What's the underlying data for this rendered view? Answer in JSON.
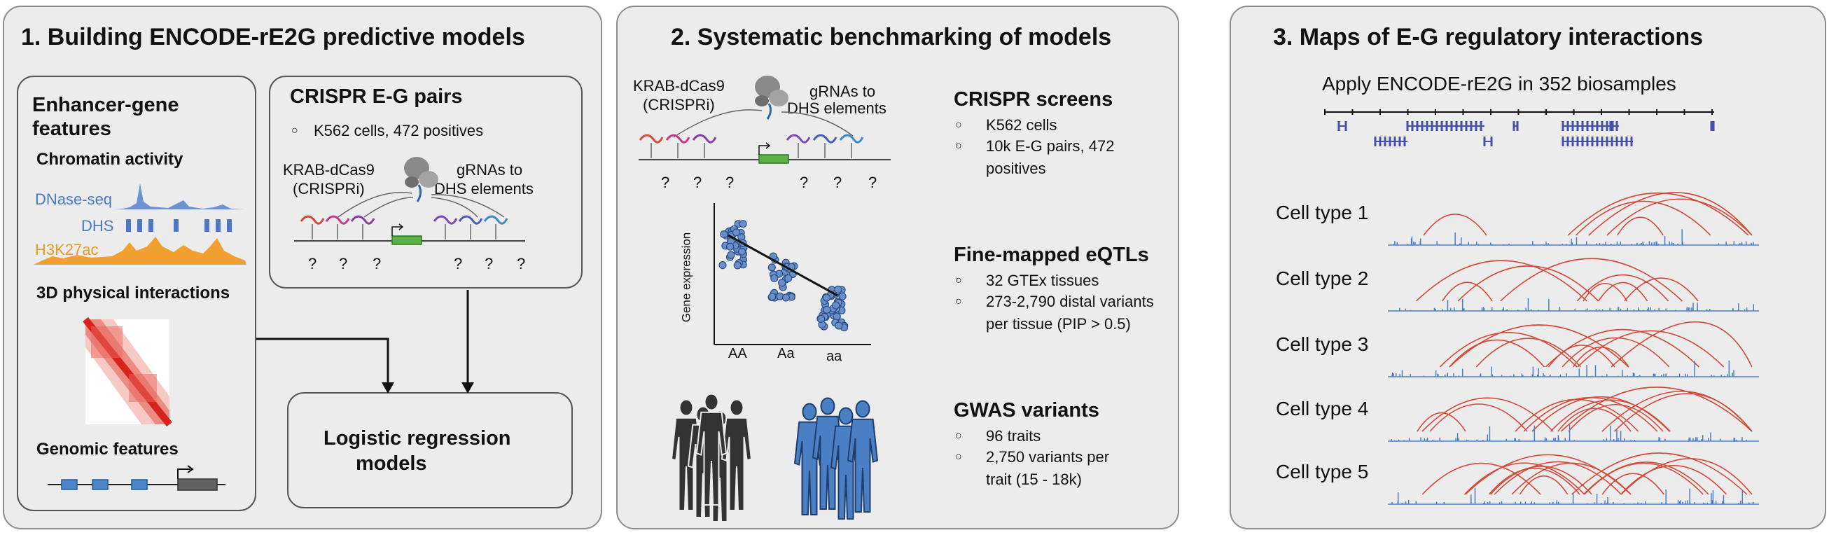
{
  "panel1": {
    "title": "1. Building ENCODE-rE2G predictive models",
    "features": {
      "title_line1": "Enhancer-gene",
      "title_line2": "features",
      "chromatin": "Chromatin activity",
      "dnase": "DNase-seq",
      "dhs": "DHS",
      "h3k27ac": "H3K27ac",
      "physical": "3D physical interactions",
      "genomic": "Genomic features"
    },
    "crispr": {
      "title": "CRISPR E-G pairs",
      "bullet": "K562 cells, 472 positives",
      "krab_line1": "KRAB-dCas9",
      "krab_line2": "(CRISPRi)",
      "grna_line1": "gRNAs to",
      "grna_line2": "DHS elements",
      "q": "?"
    },
    "logistic_line1": "Logistic regression",
    "logistic_line2": "models",
    "colors": {
      "dnase": "#4a78c2",
      "h3k27ac": "#f0a030",
      "hic": "#e0302a",
      "exon": "#4a86c8"
    }
  },
  "panel2": {
    "title": "2. Systematic benchmarking of models",
    "krab_line1": "KRAB-dCas9",
    "krab_line2": "(CRISPRi)",
    "grna_line1": "gRNAs to",
    "grna_line2": "DHS elements",
    "q": "?",
    "ylabel": "Gene expression",
    "genotypes": [
      "AA",
      "Aa",
      "aa"
    ],
    "crispr_screens": {
      "title": "CRISPR screens",
      "bullets": [
        "K562 cells",
        "10k E-G pairs, 472",
        "positives"
      ]
    },
    "eqtls": {
      "title": "Fine-mapped eQTLs",
      "bullets": [
        "32 GTEx tissues",
        "273-2,790 distal variants",
        "per tissue (PIP > 0.5)"
      ]
    },
    "gwas": {
      "title": "GWAS variants",
      "bullets": [
        "96 traits",
        "2,750 variants per",
        "trait (15 - 18k)"
      ]
    }
  },
  "panel3": {
    "title": "3. Maps of E-G regulatory interactions",
    "subtitle": "Apply ENCODE-rE2G in 352 biosamples",
    "cell_types": [
      "Cell type 1",
      "Cell type 2",
      "Cell type 3",
      "Cell type 4",
      "Cell type 5"
    ],
    "colors": {
      "arc": "#d24a3a",
      "track": "#4a7fc4",
      "gene": "#4650a8"
    }
  }
}
